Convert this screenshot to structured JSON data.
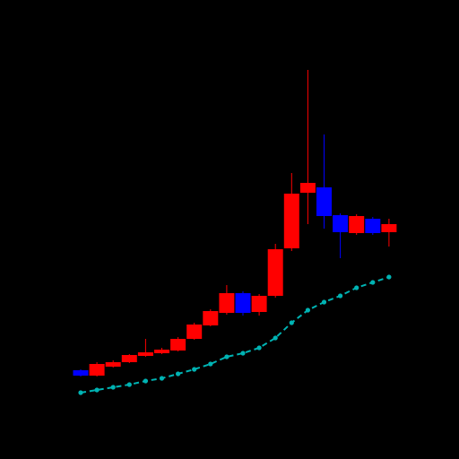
{
  "chart_data": {
    "type": "candlestick",
    "ylim": [
      0,
      512
    ],
    "up_color": "#ff0000",
    "down_color": "#0000ff",
    "candles": [
      {
        "open": 99,
        "high": 100,
        "low": 92,
        "close": 93
      },
      {
        "open": 93,
        "high": 108,
        "low": 92,
        "close": 106
      },
      {
        "open": 103,
        "high": 110,
        "low": 102,
        "close": 108
      },
      {
        "open": 108,
        "high": 117,
        "low": 107,
        "close": 116
      },
      {
        "open": 115,
        "high": 134,
        "low": 114,
        "close": 119
      },
      {
        "open": 118,
        "high": 124,
        "low": 117,
        "close": 122
      },
      {
        "open": 121,
        "high": 136,
        "low": 120,
        "close": 134
      },
      {
        "open": 134,
        "high": 152,
        "low": 133,
        "close": 150
      },
      {
        "open": 149,
        "high": 167,
        "low": 148,
        "close": 165
      },
      {
        "open": 163,
        "high": 194,
        "low": 161,
        "close": 185
      },
      {
        "open": 185,
        "high": 187,
        "low": 160,
        "close": 163
      },
      {
        "open": 164,
        "high": 184,
        "low": 160,
        "close": 182
      },
      {
        "open": 182,
        "high": 240,
        "low": 180,
        "close": 234
      },
      {
        "open": 235,
        "high": 319,
        "low": 232,
        "close": 296
      },
      {
        "open": 297,
        "high": 434,
        "low": 262,
        "close": 308
      },
      {
        "open": 303,
        "high": 362,
        "low": 257,
        "close": 271
      },
      {
        "open": 272,
        "high": 274,
        "low": 224,
        "close": 253
      },
      {
        "open": 252,
        "high": 273,
        "low": 250,
        "close": 271
      },
      {
        "open": 268,
        "high": 270,
        "low": 250,
        "close": 252
      },
      {
        "open": 253,
        "high": 268,
        "low": 237,
        "close": 262
      }
    ],
    "line": {
      "color": "#00b3b3",
      "values": [
        74,
        77,
        80,
        83,
        87,
        90,
        95,
        100,
        106,
        114,
        118,
        124,
        135,
        152,
        166,
        175,
        182,
        191,
        197,
        203
      ]
    }
  }
}
